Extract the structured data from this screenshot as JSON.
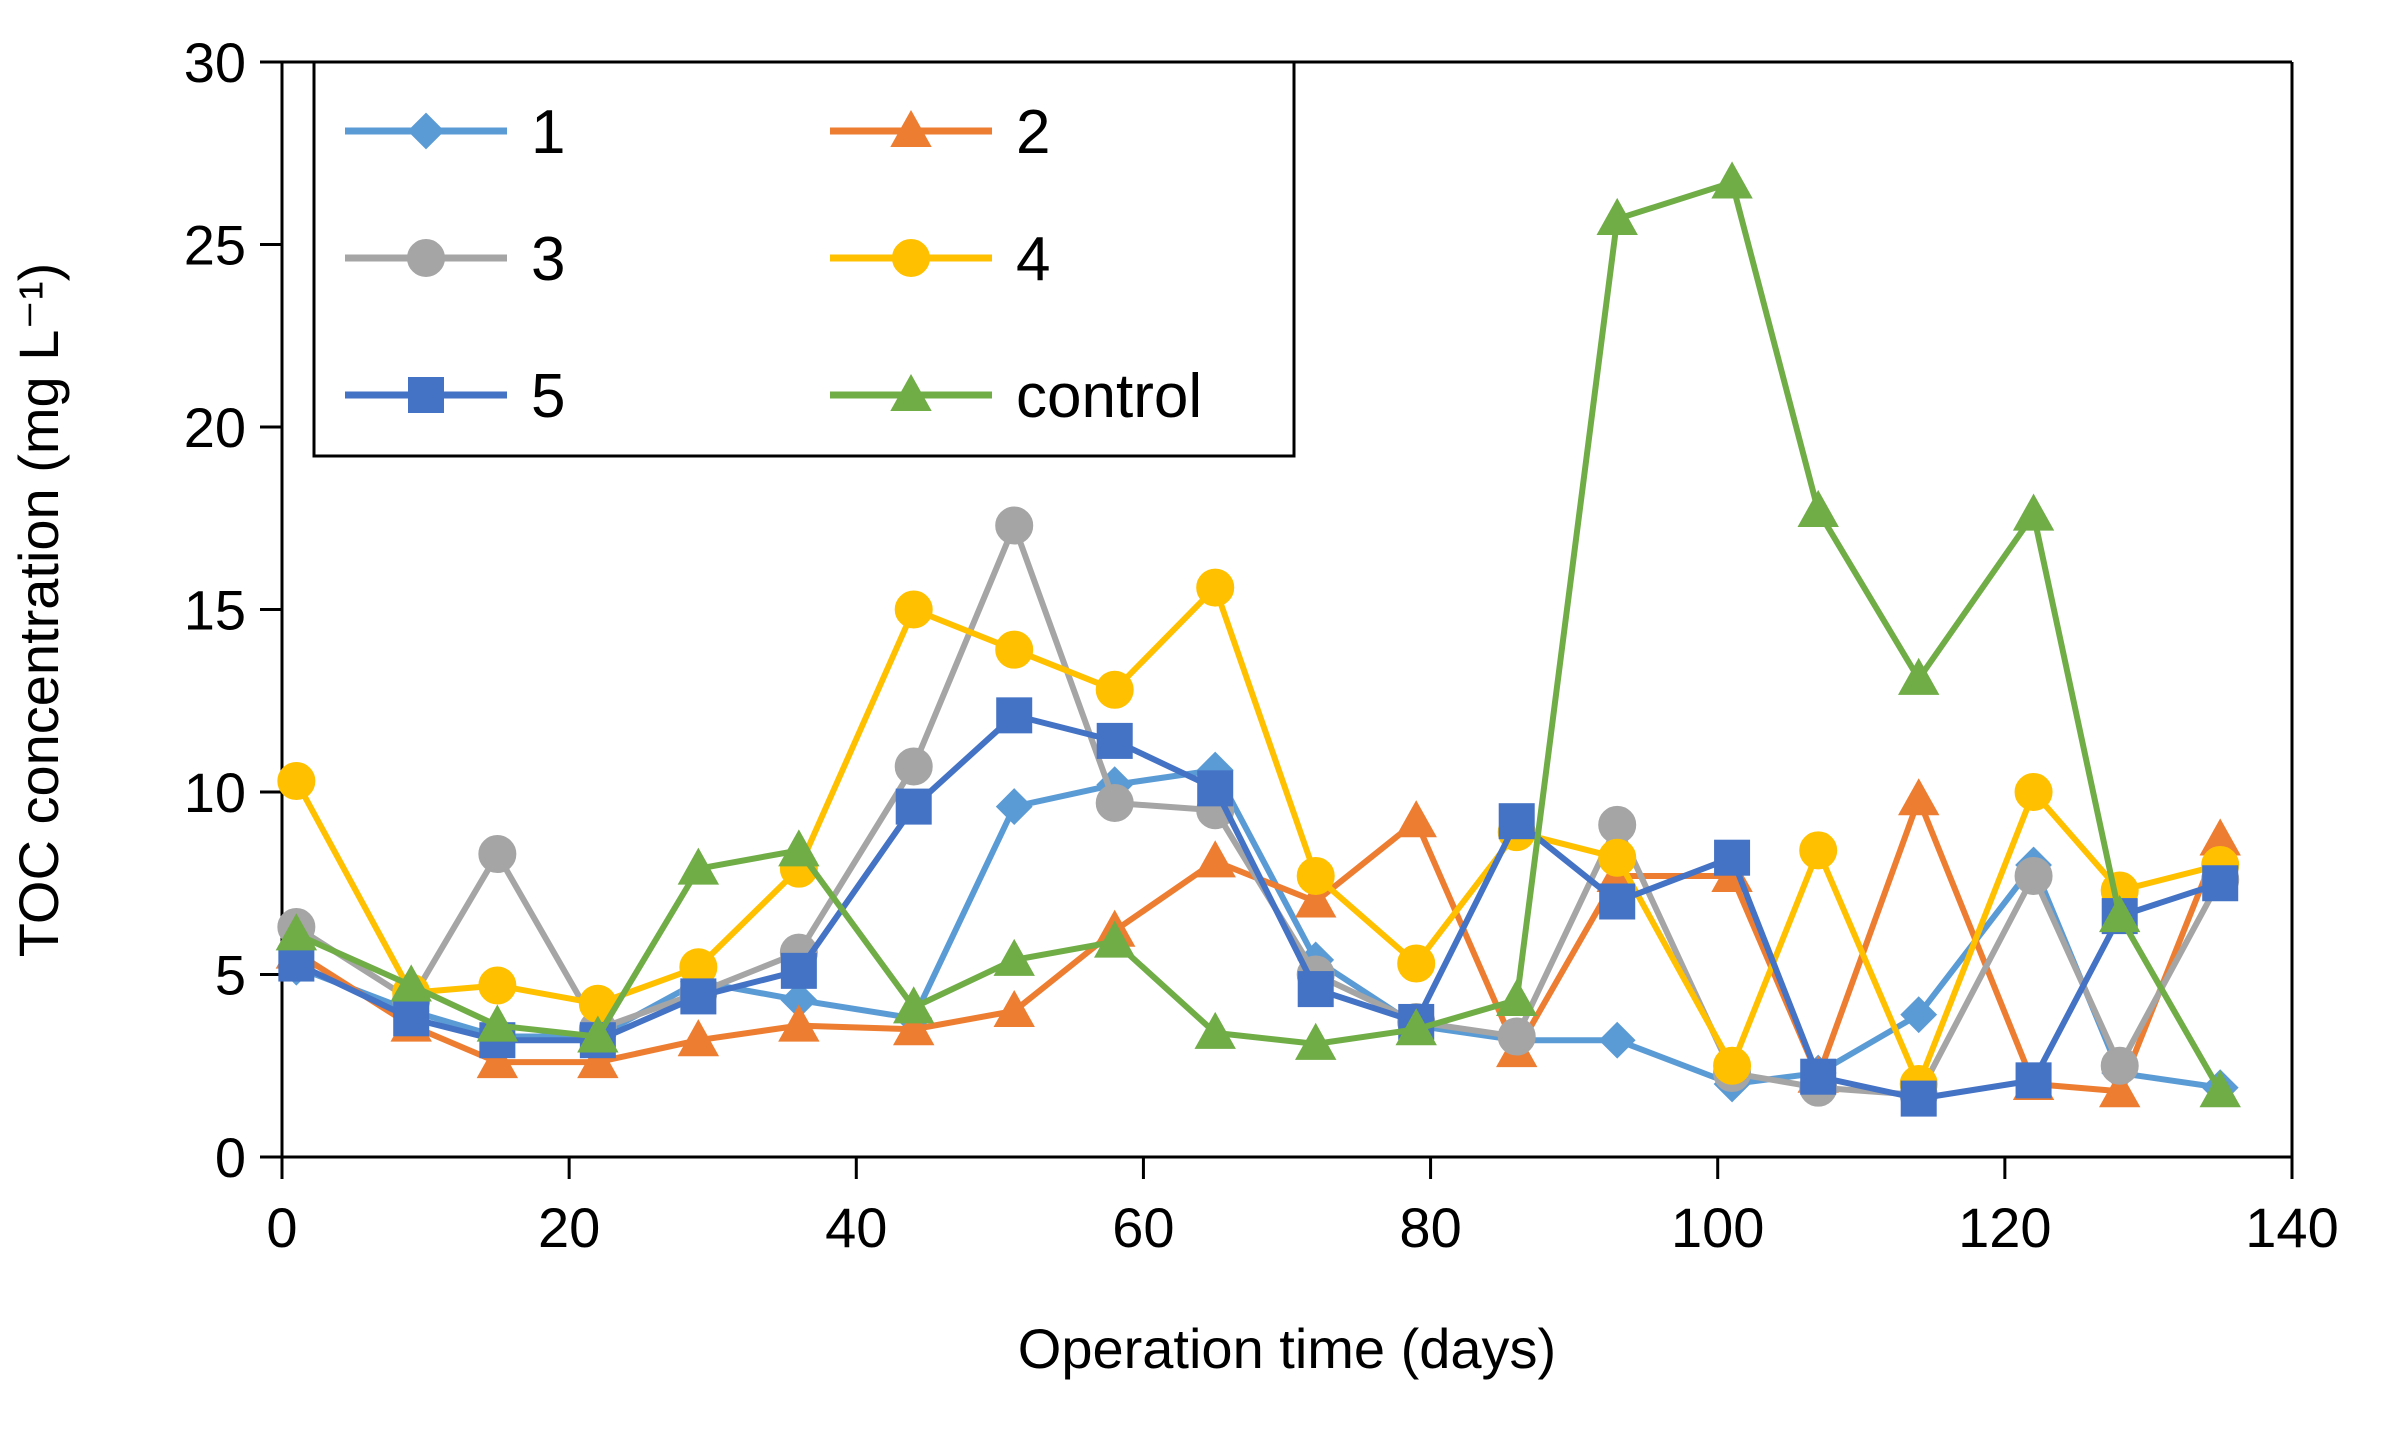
{
  "chart_data": {
    "type": "line",
    "title": "",
    "xlabel": "Operation time (days)",
    "ylabel": "TOC concentration (mg L⁻¹)",
    "xlim": [
      0,
      140
    ],
    "ylim": [
      0,
      30
    ],
    "x_ticks": [
      0,
      20,
      40,
      60,
      80,
      100,
      120,
      140
    ],
    "y_ticks": [
      0,
      5,
      10,
      15,
      20,
      25,
      30
    ],
    "x_tick_labels": [
      "0",
      "20",
      "40",
      "60",
      "80",
      "100",
      "120",
      "140"
    ],
    "y_tick_labels": [
      "0",
      "5",
      "10",
      "15",
      "20",
      "25",
      "30"
    ],
    "grid": false,
    "legend_position": "top-left",
    "x": [
      1,
      9,
      15,
      22,
      29,
      36,
      44,
      51,
      58,
      65,
      72,
      79,
      86,
      93,
      101,
      107,
      114,
      122,
      128,
      135
    ],
    "series": [
      {
        "name": "1",
        "color": "#5B9BD5",
        "marker": "diamond",
        "values": [
          5.2,
          4.0,
          3.3,
          3.3,
          4.8,
          4.3,
          3.8,
          9.6,
          10.2,
          10.6,
          5.4,
          3.6,
          3.2,
          3.2,
          2.0,
          2.3,
          3.9,
          8.0,
          2.3,
          1.9
        ]
      },
      {
        "name": "2",
        "color": "#ED7D31",
        "marker": "triangle",
        "values": [
          5.6,
          3.6,
          2.6,
          2.6,
          3.2,
          3.6,
          3.5,
          4.0,
          6.2,
          8.1,
          7.0,
          9.2,
          2.9,
          7.7,
          7.7,
          2.2,
          9.8,
          2.0,
          1.8,
          8.7
        ]
      },
      {
        "name": "3",
        "color": "#A5A5A5",
        "marker": "circle",
        "values": [
          6.3,
          4.3,
          8.3,
          3.5,
          4.5,
          5.6,
          10.7,
          17.3,
          9.7,
          9.5,
          5.0,
          3.7,
          3.3,
          9.1,
          2.3,
          1.9,
          1.7,
          7.7,
          2.5,
          7.6
        ]
      },
      {
        "name": "4",
        "color": "#FFC000",
        "marker": "circle",
        "values": [
          10.3,
          4.5,
          4.7,
          4.2,
          5.2,
          7.9,
          15.0,
          13.9,
          12.8,
          15.6,
          7.7,
          5.3,
          8.9,
          8.2,
          2.5,
          8.4,
          2.0,
          10.0,
          7.3,
          8.0
        ]
      },
      {
        "name": "5",
        "color": "#4472C4",
        "marker": "square",
        "values": [
          5.3,
          3.8,
          3.2,
          3.2,
          4.4,
          5.1,
          9.6,
          12.1,
          11.4,
          10.1,
          4.6,
          3.7,
          9.2,
          7.0,
          8.2,
          2.2,
          1.6,
          2.1,
          6.6,
          7.5
        ]
      },
      {
        "name": "control",
        "color": "#70AD47",
        "marker": "triangle",
        "values": [
          6.1,
          4.7,
          3.6,
          3.3,
          7.9,
          8.4,
          4.1,
          5.4,
          5.9,
          3.4,
          3.1,
          3.5,
          4.3,
          25.7,
          26.7,
          17.7,
          13.1,
          17.6,
          6.6,
          1.8
        ]
      }
    ]
  }
}
